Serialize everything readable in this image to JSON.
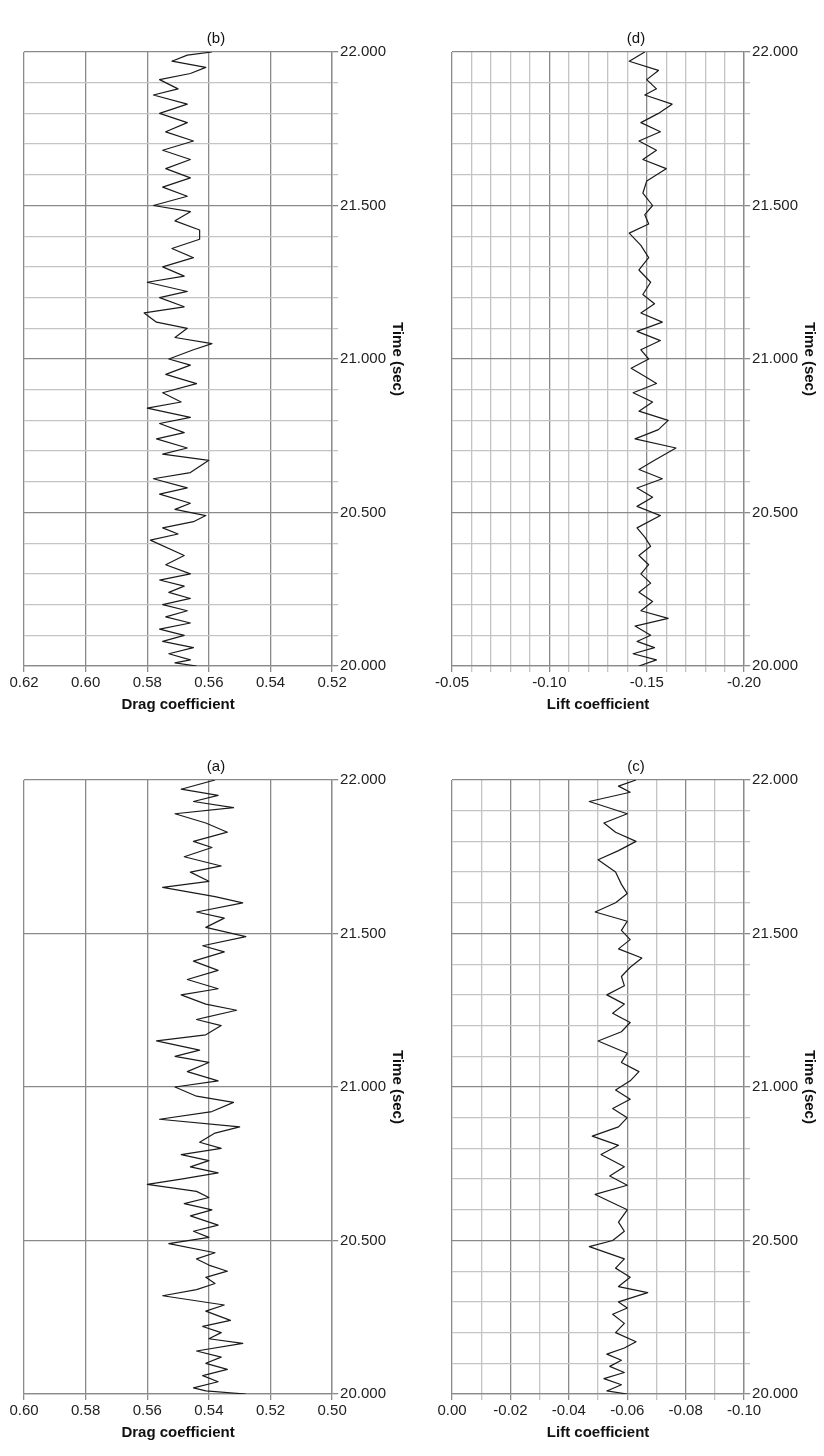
{
  "chart_data": [
    {
      "type": "line",
      "title": "(a)",
      "ylabel": "Time (sec)",
      "xlabel": "Drag coefficient",
      "color": "#1a1a1a",
      "grid": true,
      "values": [
        20.0,
        20.01,
        20.02,
        20.04,
        20.06,
        20.08,
        20.1,
        20.12,
        20.14,
        20.165,
        20.18,
        20.2,
        20.22,
        20.24,
        20.27,
        20.29,
        20.32,
        20.34,
        20.36,
        20.38,
        20.4,
        20.42,
        20.44,
        20.46,
        20.49,
        20.51,
        20.53,
        20.55,
        20.58,
        20.6,
        20.62,
        20.64,
        20.66,
        20.683,
        20.7,
        20.72,
        20.74,
        20.76,
        20.78,
        20.8,
        20.82,
        20.85,
        20.87,
        20.895,
        20.92,
        20.95,
        20.97,
        21.0,
        21.02,
        21.05,
        21.08,
        21.1,
        21.12,
        21.15,
        21.17,
        21.2,
        21.22,
        21.25,
        21.27,
        21.3,
        21.32,
        21.35,
        21.38,
        21.41,
        21.44,
        21.46,
        21.49,
        21.52,
        21.55,
        21.57,
        21.6,
        21.62,
        21.65,
        21.67,
        21.7,
        21.72,
        21.75,
        21.78,
        21.8,
        21.83,
        21.86,
        21.89,
        21.91,
        21.93,
        21.95,
        21.97,
        22.0
      ],
      "x": [
        0.528,
        0.541,
        0.545,
        0.537,
        0.542,
        0.534,
        0.541,
        0.536,
        0.544,
        0.529,
        0.54,
        0.536,
        0.542,
        0.533,
        0.541,
        0.535,
        0.555,
        0.544,
        0.538,
        0.541,
        0.534,
        0.54,
        0.544,
        0.538,
        0.553,
        0.54,
        0.545,
        0.537,
        0.546,
        0.539,
        0.548,
        0.54,
        0.544,
        0.56,
        0.549,
        0.537,
        0.546,
        0.54,
        0.549,
        0.536,
        0.543,
        0.538,
        0.53,
        0.556,
        0.539,
        0.532,
        0.544,
        0.551,
        0.537,
        0.547,
        0.54,
        0.551,
        0.543,
        0.557,
        0.541,
        0.536,
        0.544,
        0.531,
        0.541,
        0.549,
        0.537,
        0.547,
        0.537,
        0.545,
        0.535,
        0.542,
        0.528,
        0.541,
        0.535,
        0.544,
        0.529,
        0.538,
        0.555,
        0.54,
        0.546,
        0.536,
        0.548,
        0.539,
        0.545,
        0.534,
        0.541,
        0.551,
        0.532,
        0.545,
        0.537,
        0.549,
        0.538
      ],
      "ylim": [
        20,
        22
      ],
      "xlim": [
        0.6,
        0.5
      ],
      "yticks": [
        {
          "value": 20,
          "label": "20.000"
        },
        {
          "value": 20.5,
          "label": "20.500"
        },
        {
          "value": 21,
          "label": "21.000"
        },
        {
          "value": 21.5,
          "label": "21.500"
        },
        {
          "value": 22,
          "label": "22.000"
        }
      ],
      "xticks": [
        {
          "value": 0.6,
          "label": "0.60"
        },
        0.58,
        0.56,
        0.54,
        0.52,
        {
          "value": 0.5,
          "label": "0.50"
        }
      ]
    },
    {
      "type": "line",
      "title": "(b)",
      "ylabel": "Time (sec)",
      "xlabel": "Drag coefficient",
      "color": "#1a1a1a",
      "grid": true,
      "values": [
        20.0,
        20.01,
        20.02,
        20.04,
        20.06,
        20.08,
        20.1,
        20.12,
        20.14,
        20.16,
        20.18,
        20.2,
        20.22,
        20.24,
        20.26,
        20.28,
        20.3,
        20.33,
        20.36,
        20.41,
        20.43,
        20.45,
        20.47,
        20.49,
        20.51,
        20.53,
        20.56,
        20.58,
        20.61,
        20.63,
        20.67,
        20.69,
        20.71,
        20.74,
        20.76,
        20.79,
        20.81,
        20.84,
        20.86,
        20.89,
        20.92,
        20.95,
        20.98,
        21.0,
        21.03,
        21.05,
        21.07,
        21.1,
        21.12,
        21.15,
        21.17,
        21.2,
        21.22,
        21.25,
        21.27,
        21.3,
        21.33,
        21.36,
        21.39,
        21.42,
        21.45,
        21.48,
        21.5,
        21.53,
        21.56,
        21.59,
        21.62,
        21.65,
        21.68,
        21.71,
        21.74,
        21.77,
        21.8,
        21.83,
        21.86,
        21.88,
        21.91,
        21.93,
        21.95,
        21.97,
        21.99,
        22.0
      ],
      "x": [
        0.564,
        0.571,
        0.566,
        0.573,
        0.565,
        0.575,
        0.568,
        0.576,
        0.566,
        0.574,
        0.567,
        0.575,
        0.566,
        0.573,
        0.568,
        0.576,
        0.566,
        0.574,
        0.568,
        0.579,
        0.57,
        0.575,
        0.565,
        0.561,
        0.571,
        0.566,
        0.576,
        0.567,
        0.578,
        0.566,
        0.56,
        0.575,
        0.567,
        0.577,
        0.568,
        0.576,
        0.566,
        0.58,
        0.569,
        0.575,
        0.564,
        0.574,
        0.566,
        0.573,
        0.565,
        0.559,
        0.571,
        0.567,
        0.577,
        0.581,
        0.568,
        0.576,
        0.567,
        0.58,
        0.568,
        0.575,
        0.565,
        0.572,
        0.563,
        0.563,
        0.571,
        0.566,
        0.578,
        0.567,
        0.575,
        0.566,
        0.574,
        0.566,
        0.575,
        0.565,
        0.574,
        0.567,
        0.576,
        0.567,
        0.578,
        0.57,
        0.576,
        0.566,
        0.561,
        0.572,
        0.567,
        0.559
      ],
      "ylim": [
        20,
        22
      ],
      "xlim": [
        0.62,
        0.52
      ],
      "yticks": [
        {
          "value": 20,
          "label": "20.000"
        },
        {
          "value": 20.1,
          "label": null
        },
        {
          "value": 20.2,
          "label": null
        },
        {
          "value": 20.3,
          "label": null
        },
        {
          "value": 20.4,
          "label": null
        },
        {
          "value": 20.5,
          "label": "20.500"
        },
        {
          "value": 20.6,
          "label": null
        },
        {
          "value": 20.7,
          "label": null
        },
        {
          "value": 20.8,
          "label": null
        },
        {
          "value": 20.9,
          "label": null
        },
        {
          "value": 21,
          "label": "21.000"
        },
        {
          "value": 21.1,
          "label": null
        },
        {
          "value": 21.2,
          "label": null
        },
        {
          "value": 21.3,
          "label": null
        },
        {
          "value": 21.4,
          "label": null
        },
        {
          "value": 21.5,
          "label": "21.500"
        },
        {
          "value": 21.6,
          "label": null
        },
        {
          "value": 21.7,
          "label": null
        },
        {
          "value": 21.8,
          "label": null
        },
        {
          "value": 21.9,
          "label": null
        },
        {
          "value": 22,
          "label": "22.000"
        }
      ],
      "xticks": [
        0.62,
        {
          "value": 0.6,
          "label": "0.60"
        },
        0.58,
        0.56,
        0.54,
        0.52
      ]
    },
    {
      "type": "line",
      "title": "(c)",
      "ylabel": "Time (sec)",
      "xlabel": "Lift coefficient",
      "color": "#1a1a1a",
      "grid": true,
      "values": [
        20.0,
        20.01,
        20.03,
        20.05,
        20.07,
        20.09,
        20.11,
        20.13,
        20.15,
        20.17,
        20.2,
        20.23,
        20.26,
        20.28,
        20.3,
        20.33,
        20.35,
        20.38,
        20.41,
        20.44,
        20.48,
        20.5,
        20.53,
        20.56,
        20.6,
        20.65,
        20.68,
        20.71,
        20.74,
        20.78,
        20.81,
        20.84,
        20.87,
        20.9,
        20.93,
        20.96,
        20.99,
        21.02,
        21.05,
        21.08,
        21.11,
        21.15,
        21.18,
        21.21,
        21.24,
        21.27,
        21.3,
        21.33,
        21.36,
        21.39,
        21.42,
        21.45,
        21.48,
        21.51,
        21.54,
        21.57,
        21.6,
        21.63,
        21.66,
        21.7,
        21.74,
        21.77,
        21.8,
        21.83,
        21.86,
        21.89,
        21.93,
        21.96,
        21.98,
        22.0
      ],
      "x": [
        -0.06,
        -0.053,
        -0.058,
        -0.052,
        -0.059,
        -0.054,
        -0.058,
        -0.053,
        -0.059,
        -0.063,
        -0.056,
        -0.059,
        -0.055,
        -0.06,
        -0.057,
        -0.067,
        -0.057,
        -0.061,
        -0.056,
        -0.059,
        -0.047,
        -0.055,
        -0.059,
        -0.057,
        -0.06,
        -0.049,
        -0.06,
        -0.054,
        -0.059,
        -0.051,
        -0.057,
        -0.048,
        -0.057,
        -0.06,
        -0.055,
        -0.061,
        -0.056,
        -0.061,
        -0.064,
        -0.058,
        -0.06,
        -0.05,
        -0.058,
        -0.061,
        -0.055,
        -0.059,
        -0.053,
        -0.059,
        -0.058,
        -0.061,
        -0.065,
        -0.057,
        -0.061,
        -0.058,
        -0.06,
        -0.049,
        -0.056,
        -0.06,
        -0.058,
        -0.056,
        -0.05,
        -0.057,
        -0.063,
        -0.056,
        -0.052,
        -0.06,
        -0.047,
        -0.061,
        -0.057,
        -0.063
      ],
      "ylim": [
        20,
        22
      ],
      "xlim": [
        0,
        -0.1
      ],
      "yticks": [
        {
          "value": 20,
          "label": "20.000"
        },
        {
          "value": 20.1,
          "label": null
        },
        {
          "value": 20.2,
          "label": null
        },
        {
          "value": 20.3,
          "label": null
        },
        {
          "value": 20.4,
          "label": null
        },
        {
          "value": 20.5,
          "label": "20.500"
        },
        {
          "value": 20.6,
          "label": null
        },
        {
          "value": 20.7,
          "label": null
        },
        {
          "value": 20.8,
          "label": null
        },
        {
          "value": 20.9,
          "label": null
        },
        {
          "value": 21,
          "label": "21.000"
        },
        {
          "value": 21.1,
          "label": null
        },
        {
          "value": 21.2,
          "label": null
        },
        {
          "value": 21.3,
          "label": null
        },
        {
          "value": 21.4,
          "label": null
        },
        {
          "value": 21.5,
          "label": "21.500"
        },
        {
          "value": 21.6,
          "label": null
        },
        {
          "value": 21.7,
          "label": null
        },
        {
          "value": 21.8,
          "label": null
        },
        {
          "value": 21.9,
          "label": null
        },
        {
          "value": 22,
          "label": "22.000"
        }
      ],
      "xticks": [
        {
          "value": 0,
          "label": "0.00"
        },
        {
          "value": -0.01,
          "label": null
        },
        -0.02,
        {
          "value": -0.03,
          "label": null
        },
        -0.04,
        {
          "value": -0.05,
          "label": null
        },
        -0.06,
        {
          "value": -0.07,
          "label": null
        },
        -0.08,
        {
          "value": -0.09,
          "label": null
        },
        {
          "value": -0.1,
          "label": "-0.10"
        }
      ]
    },
    {
      "type": "line",
      "title": "(d)",
      "ylabel": "Time (sec)",
      "xlabel": "Lift coefficient",
      "color": "#1a1a1a",
      "grid": true,
      "values": [
        20.0,
        20.02,
        20.04,
        20.06,
        20.08,
        20.1,
        20.13,
        20.155,
        20.18,
        20.21,
        20.24,
        20.27,
        20.3,
        20.33,
        20.36,
        20.39,
        20.42,
        20.45,
        20.49,
        20.52,
        20.55,
        20.58,
        20.61,
        20.64,
        20.67,
        20.71,
        20.74,
        20.77,
        20.8,
        20.83,
        20.86,
        20.89,
        20.92,
        20.94,
        20.97,
        21.0,
        21.03,
        21.06,
        21.09,
        21.12,
        21.15,
        21.18,
        21.21,
        21.25,
        21.29,
        21.33,
        21.37,
        21.41,
        21.44,
        21.47,
        21.5,
        21.54,
        21.58,
        21.62,
        21.65,
        21.68,
        21.71,
        21.74,
        21.77,
        21.8,
        21.83,
        21.86,
        21.88,
        21.91,
        21.94,
        21.97,
        22.0
      ],
      "x": [
        -0.146,
        -0.155,
        -0.143,
        -0.154,
        -0.145,
        -0.152,
        -0.144,
        -0.161,
        -0.147,
        -0.153,
        -0.146,
        -0.152,
        -0.147,
        -0.151,
        -0.146,
        -0.152,
        -0.149,
        -0.145,
        -0.157,
        -0.145,
        -0.153,
        -0.145,
        -0.158,
        -0.146,
        -0.154,
        -0.165,
        -0.144,
        -0.156,
        -0.161,
        -0.146,
        -0.153,
        -0.143,
        -0.155,
        -0.15,
        -0.142,
        -0.151,
        -0.147,
        -0.157,
        -0.145,
        -0.158,
        -0.147,
        -0.154,
        -0.148,
        -0.152,
        -0.146,
        -0.151,
        -0.147,
        -0.141,
        -0.151,
        -0.149,
        -0.153,
        -0.148,
        -0.15,
        -0.16,
        -0.148,
        -0.155,
        -0.146,
        -0.157,
        -0.147,
        -0.156,
        -0.163,
        -0.149,
        -0.155,
        -0.15,
        -0.156,
        -0.141,
        -0.149
      ],
      "ylim": [
        20,
        22
      ],
      "xlim": [
        -0.05,
        -0.2
      ],
      "yticks": [
        {
          "value": 20,
          "label": "20.000"
        },
        {
          "value": 20.1,
          "label": null
        },
        {
          "value": 20.2,
          "label": null
        },
        {
          "value": 20.3,
          "label": null
        },
        {
          "value": 20.4,
          "label": null
        },
        {
          "value": 20.5,
          "label": "20.500"
        },
        {
          "value": 20.6,
          "label": null
        },
        {
          "value": 20.7,
          "label": null
        },
        {
          "value": 20.8,
          "label": null
        },
        {
          "value": 20.9,
          "label": null
        },
        {
          "value": 21,
          "label": "21.000"
        },
        {
          "value": 21.1,
          "label": null
        },
        {
          "value": 21.2,
          "label": null
        },
        {
          "value": 21.3,
          "label": null
        },
        {
          "value": 21.4,
          "label": null
        },
        {
          "value": 21.5,
          "label": "21.500"
        },
        {
          "value": 21.6,
          "label": null
        },
        {
          "value": 21.7,
          "label": null
        },
        {
          "value": 21.8,
          "label": null
        },
        {
          "value": 21.9,
          "label": null
        },
        {
          "value": 22,
          "label": "22.000"
        }
      ],
      "xticks": [
        -0.05,
        {
          "value": -0.06,
          "label": null
        },
        {
          "value": -0.07,
          "label": null
        },
        {
          "value": -0.08,
          "label": null
        },
        {
          "value": -0.09,
          "label": null
        },
        {
          "value": -0.1,
          "label": "-0.10"
        },
        {
          "value": -0.11,
          "label": null
        },
        {
          "value": -0.12,
          "label": null
        },
        {
          "value": -0.13,
          "label": null
        },
        {
          "value": -0.14,
          "label": null
        },
        -0.15,
        {
          "value": -0.16,
          "label": null
        },
        {
          "value": -0.17,
          "label": null
        },
        {
          "value": -0.18,
          "label": null
        },
        {
          "value": -0.19,
          "label": null
        },
        {
          "value": -0.2,
          "label": "-0.20"
        }
      ]
    }
  ]
}
